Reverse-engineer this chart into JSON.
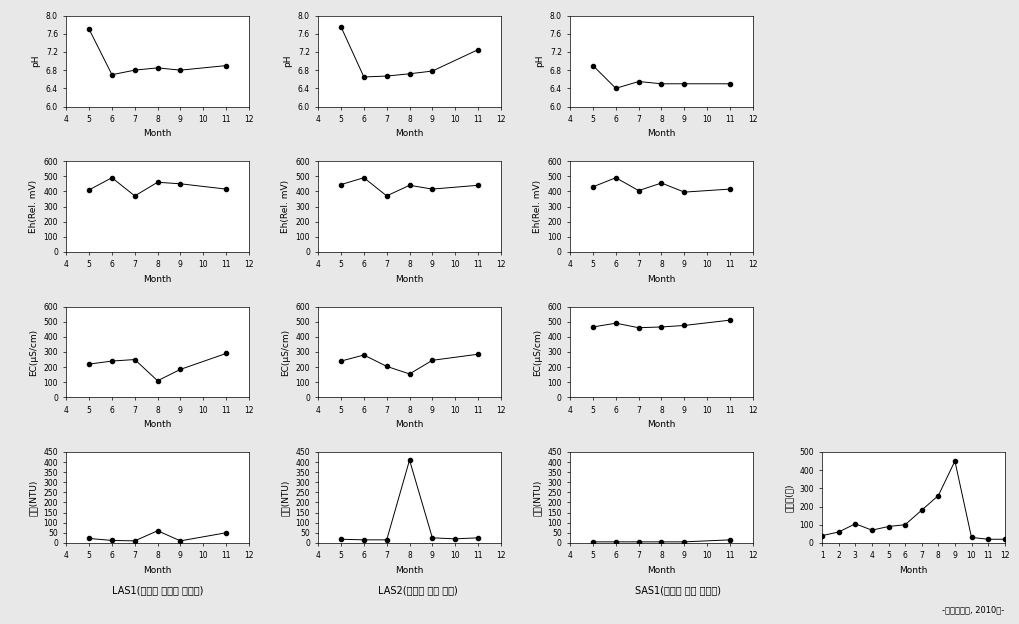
{
  "LAS1_pH": {
    "months": [
      5,
      6,
      7,
      8,
      9,
      11
    ],
    "values": [
      7.7,
      6.7,
      6.8,
      6.85,
      6.8,
      6.9
    ]
  },
  "LAS2_pH": {
    "months": [
      5,
      6,
      7,
      8,
      9,
      11
    ],
    "values": [
      7.75,
      6.65,
      6.67,
      6.72,
      6.78,
      7.25
    ]
  },
  "SAS1_pH": {
    "months": [
      5,
      6,
      7,
      8,
      9,
      11
    ],
    "values": [
      6.9,
      6.4,
      6.55,
      6.5,
      6.5,
      6.5
    ]
  },
  "LAS1_Eh": {
    "months": [
      5,
      6,
      7,
      8,
      9,
      11
    ],
    "values": [
      410,
      490,
      370,
      460,
      450,
      415
    ]
  },
  "LAS2_Eh": {
    "months": [
      5,
      6,
      7,
      8,
      9,
      11
    ],
    "values": [
      445,
      490,
      370,
      440,
      415,
      440
    ]
  },
  "SAS1_Eh": {
    "months": [
      5,
      6,
      7,
      8,
      9,
      11
    ],
    "values": [
      430,
      490,
      405,
      455,
      395,
      415
    ]
  },
  "LAS1_EC": {
    "months": [
      5,
      6,
      7,
      8,
      9,
      11
    ],
    "values": [
      220,
      240,
      250,
      110,
      185,
      290
    ]
  },
  "LAS2_EC": {
    "months": [
      5,
      6,
      7,
      8,
      9,
      11
    ],
    "values": [
      240,
      280,
      205,
      155,
      245,
      285
    ]
  },
  "SAS1_EC": {
    "months": [
      5,
      6,
      7,
      8,
      9,
      11
    ],
    "values": [
      465,
      490,
      460,
      465,
      475,
      510
    ]
  },
  "LAS1_turb": {
    "months": [
      5,
      6,
      7,
      8,
      9,
      11
    ],
    "values": [
      22,
      12,
      10,
      60,
      10,
      50
    ]
  },
  "LAS2_turb": {
    "months": [
      5,
      6,
      7,
      8,
      9,
      10,
      11
    ],
    "values": [
      18,
      15,
      15,
      410,
      25,
      20,
      25
    ]
  },
  "SAS1_turb": {
    "months": [
      5,
      6,
      7,
      8,
      9,
      11
    ],
    "values": [
      5,
      5,
      5,
      5,
      5,
      15
    ]
  },
  "SAS1_rain": {
    "months": [
      1,
      2,
      3,
      4,
      5,
      6,
      7,
      8,
      9,
      10,
      11,
      12
    ],
    "values": [
      40,
      60,
      105,
      70,
      90,
      100,
      180,
      260,
      450,
      30,
      20,
      20
    ]
  },
  "pH_ylim": [
    6.0,
    8.0
  ],
  "Eh_ylim": [
    0,
    600
  ],
  "EC_ylim": [
    0,
    600
  ],
  "turb_ylim": [
    0,
    450
  ],
  "rain_ylim": [
    0,
    500
  ],
  "month_xlim": [
    4,
    12
  ],
  "month_xlim_rain": [
    1,
    12
  ],
  "pH_yticks": [
    6.0,
    6.4,
    6.8,
    7.2,
    7.6,
    8.0
  ],
  "Eh_yticks": [
    0,
    100,
    200,
    300,
    400,
    500,
    600
  ],
  "EC_yticks": [
    0,
    100,
    200,
    300,
    400,
    500,
    600
  ],
  "turb_yticks": [
    0,
    50,
    100,
    150,
    200,
    250,
    300,
    350,
    400,
    450
  ],
  "rain_yticks": [
    0,
    100,
    200,
    300,
    400,
    500
  ],
  "col1_label": "LAS1(서문면 신흔리 하천수)",
  "col2_label": "LAS2(대덕면 축리 한천)",
  "col3_label": "SAS1(대덕면 축리 방류수)",
  "credit": "-이천기상대, 2010년-",
  "xlabel": "Month",
  "ylabel_pH": "pH",
  "ylabel_Eh": "Eh(Rel. mV)",
  "ylabel_EC": "EC(μS/cm)",
  "ylabel_turb_LAS1": "탁도(NTU)",
  "ylabel_turb_LAS2": "탁도(NTU)",
  "ylabel_turb_SAS1": "탁도(NTU)",
  "ylabel_rain": "강수량(㎜)"
}
